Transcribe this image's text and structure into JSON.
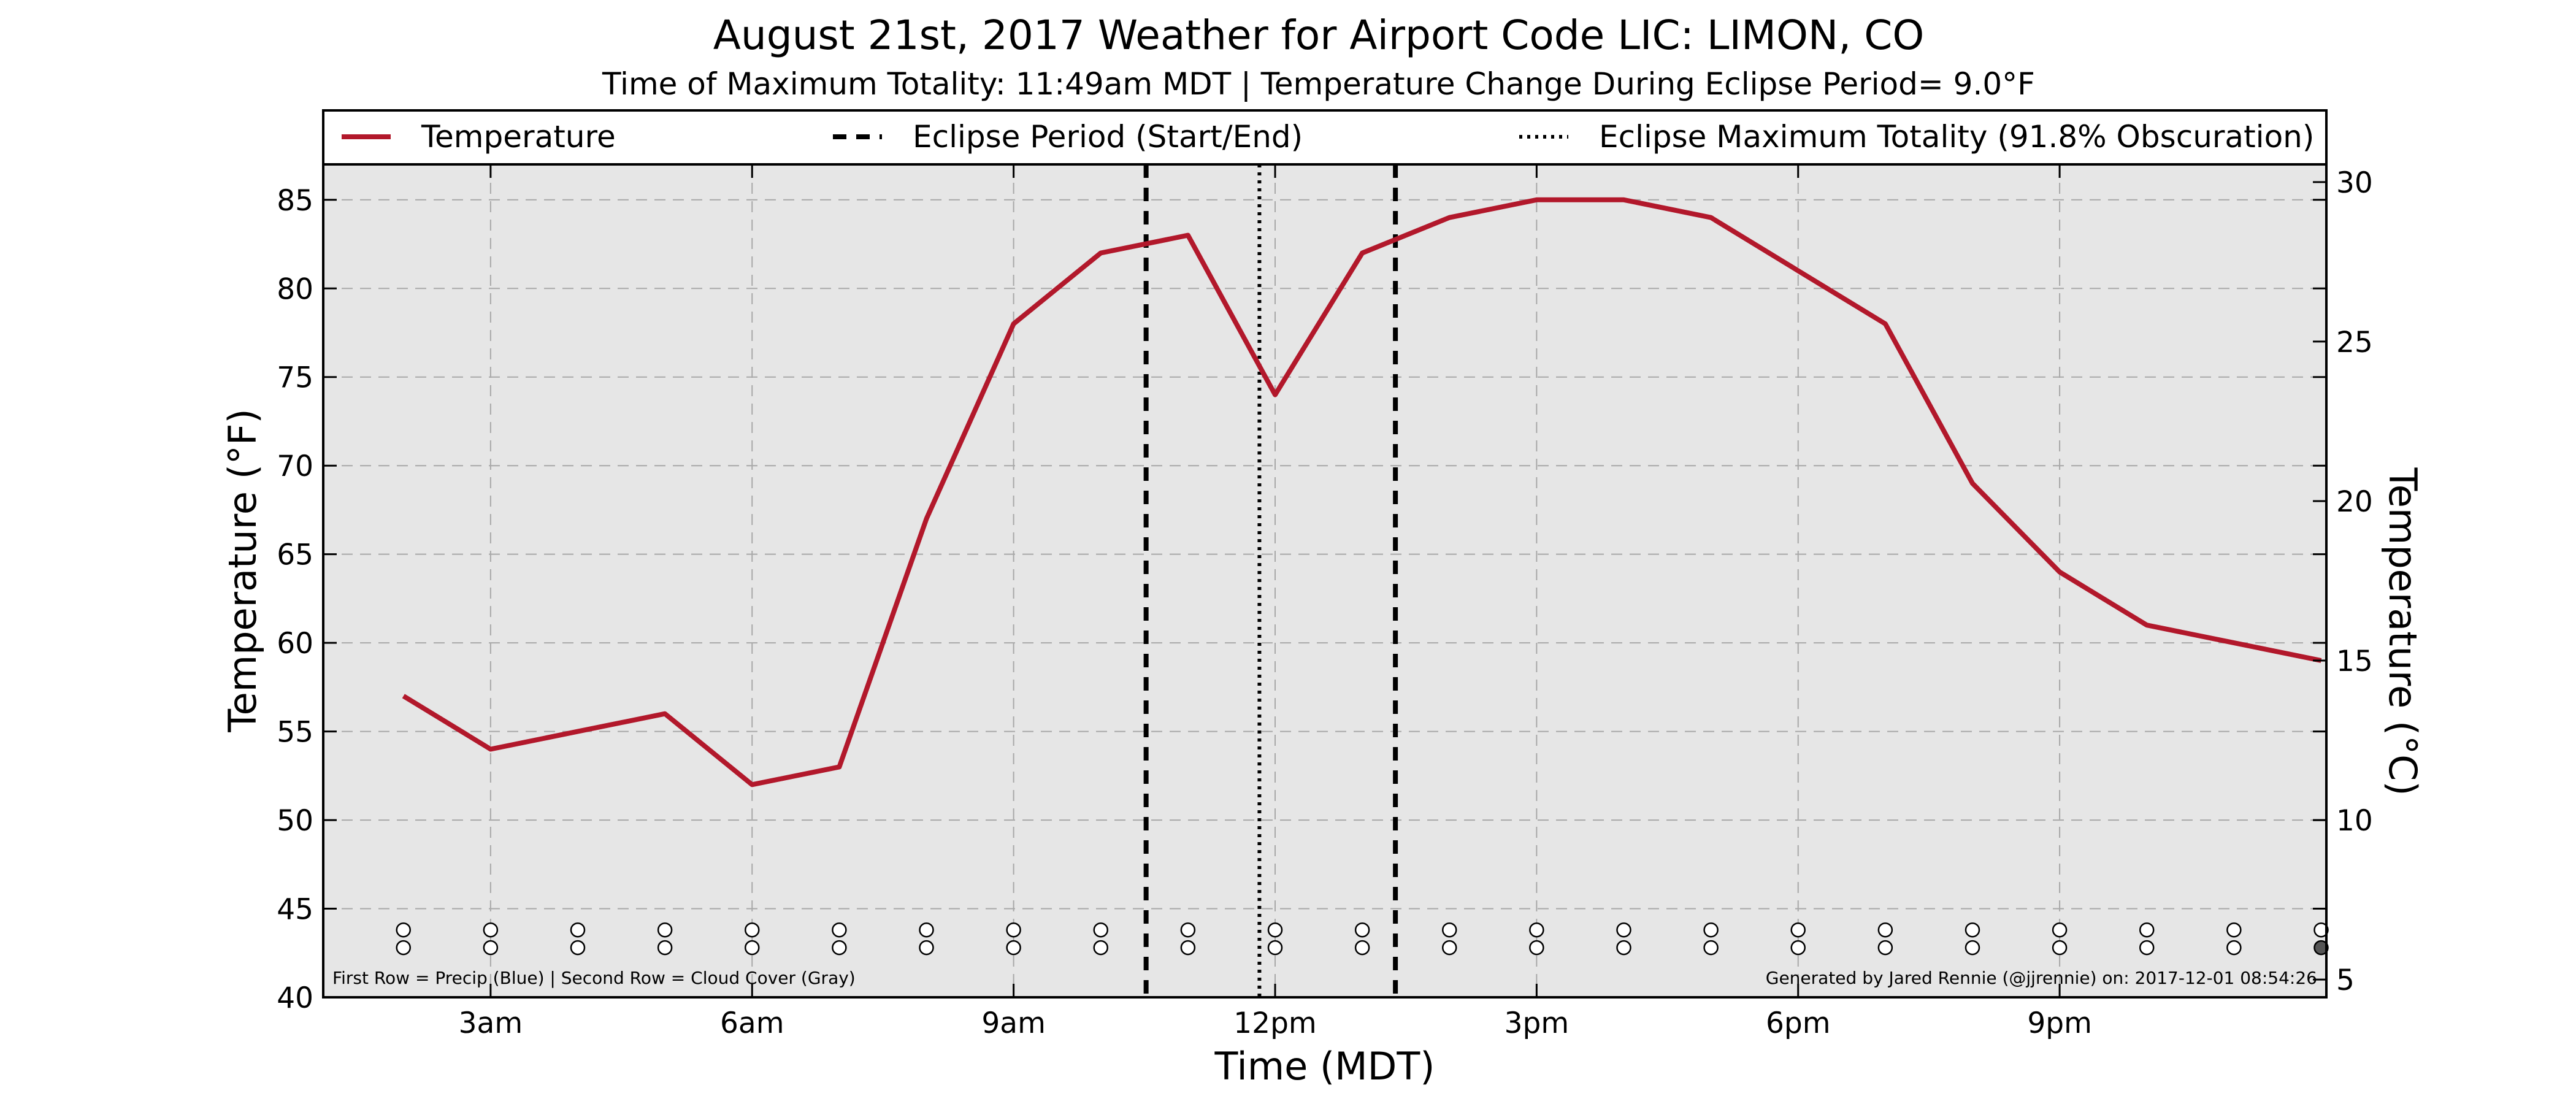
{
  "chart_data": {
    "type": "line",
    "title": "August 21st, 2017 Weather for Airport Code LIC: LIMON, CO",
    "subtitle": "Time of Maximum Totality: 11:49am MDT | Temperature Change During Eclipse Period= 9.0°F",
    "xlabel": "Time (MDT)",
    "ylabel": "Temperature (°F)",
    "ylabel_right": "Temperature (°C)",
    "x_ticks": [
      {
        "hour": 3,
        "label": "3am"
      },
      {
        "hour": 6,
        "label": "6am"
      },
      {
        "hour": 9,
        "label": "9am"
      },
      {
        "hour": 12,
        "label": "12pm"
      },
      {
        "hour": 15,
        "label": "3pm"
      },
      {
        "hour": 18,
        "label": "6pm"
      },
      {
        "hour": 21,
        "label": "9pm"
      }
    ],
    "xlim_hours": [
      1.08,
      24.06
    ],
    "ylim": [
      40,
      87
    ],
    "yticks": [
      40,
      45,
      50,
      55,
      60,
      65,
      70,
      75,
      80,
      85
    ],
    "yticks_right_c": [
      5,
      10,
      15,
      20,
      25,
      30
    ],
    "grid": true,
    "legend_position": "top",
    "series": [
      {
        "name": "Temperature",
        "color": "#b2182b",
        "hours": [
          2,
          3,
          4,
          5,
          6,
          7,
          8,
          9,
          10,
          11,
          12,
          13,
          14,
          15,
          16,
          17,
          18,
          19,
          20,
          21,
          22,
          23,
          24
        ],
        "values": [
          57,
          54,
          55,
          56,
          52,
          53,
          67,
          78,
          82,
          83,
          74,
          82,
          84,
          85,
          85,
          84,
          81,
          78,
          69,
          64,
          61,
          60,
          59
        ]
      }
    ],
    "eclipse_start_hour": 10.52,
    "eclipse_end_hour": 13.38,
    "eclipse_max_hour": 11.82,
    "legend_items": [
      {
        "label": "Temperature",
        "style": "solid-red"
      },
      {
        "label": "Eclipse Period (Start/End)",
        "style": "dashed-black"
      },
      {
        "label": "Eclipse Maximum Totality (91.8% Obscuration)",
        "style": "dotted-black"
      }
    ],
    "precip_hours": [
      2,
      3,
      4,
      5,
      6,
      7,
      8,
      9,
      10,
      11,
      12,
      13,
      14,
      15,
      16,
      17,
      18,
      19,
      20,
      21,
      22,
      23,
      24
    ],
    "precip_row_value": 43.8,
    "cloud_row_value": 42.8,
    "cloud_filled_hours": [
      24
    ],
    "footnote_left": "First Row = Precip (Blue) | Second Row = Cloud Cover (Gray)",
    "footnote_right": "Generated by Jared Rennie (@jjrennie) on: 2017-12-01 08:54:26"
  }
}
